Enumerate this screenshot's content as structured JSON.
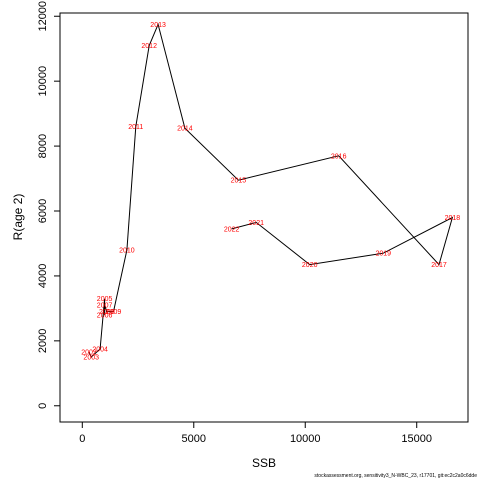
{
  "chart_data": {
    "type": "line",
    "title": "",
    "xlabel": "SSB",
    "ylabel": "R(age 2)",
    "xlim": [
      -1000,
      17300
    ],
    "ylim": [
      -500,
      12100
    ],
    "x_ticks": [
      0,
      5000,
      10000,
      15000
    ],
    "y_ticks": [
      0,
      2000,
      4000,
      6000,
      8000,
      10000,
      12000
    ],
    "grid": false,
    "line_color": "#000000",
    "label_color": "#ff0000",
    "points": [
      {
        "year": "2002",
        "x": 300,
        "y": 1650
      },
      {
        "year": "2003",
        "x": 400,
        "y": 1500
      },
      {
        "year": "2004",
        "x": 800,
        "y": 1750
      },
      {
        "year": "2005",
        "x": 1000,
        "y": 3300
      },
      {
        "year": "2006",
        "x": 1000,
        "y": 2800
      },
      {
        "year": "2007",
        "x": 1000,
        "y": 3100
      },
      {
        "year": "2008",
        "x": 1100,
        "y": 2900
      },
      {
        "year": "2009",
        "x": 1400,
        "y": 2900
      },
      {
        "year": "2010",
        "x": 2000,
        "y": 4800
      },
      {
        "year": "2011",
        "x": 2400,
        "y": 8600
      },
      {
        "year": "2012",
        "x": 3000,
        "y": 11100
      },
      {
        "year": "2013",
        "x": 3400,
        "y": 11750
      },
      {
        "year": "2014",
        "x": 4600,
        "y": 8550
      },
      {
        "year": "2015",
        "x": 7000,
        "y": 6950
      },
      {
        "year": "2016",
        "x": 11500,
        "y": 7700
      },
      {
        "year": "2017",
        "x": 16000,
        "y": 4350
      },
      {
        "year": "2018",
        "x": 16600,
        "y": 5800
      },
      {
        "year": "2019",
        "x": 13500,
        "y": 4700
      },
      {
        "year": "2020",
        "x": 10200,
        "y": 4350
      },
      {
        "year": "2021",
        "x": 7800,
        "y": 5650
      },
      {
        "year": "2022",
        "x": 6700,
        "y": 5450
      }
    ]
  },
  "footer": "stockassessment.org, sensitivity3_N-WBC_23, r17701, git:ec2c2a0c6dde"
}
